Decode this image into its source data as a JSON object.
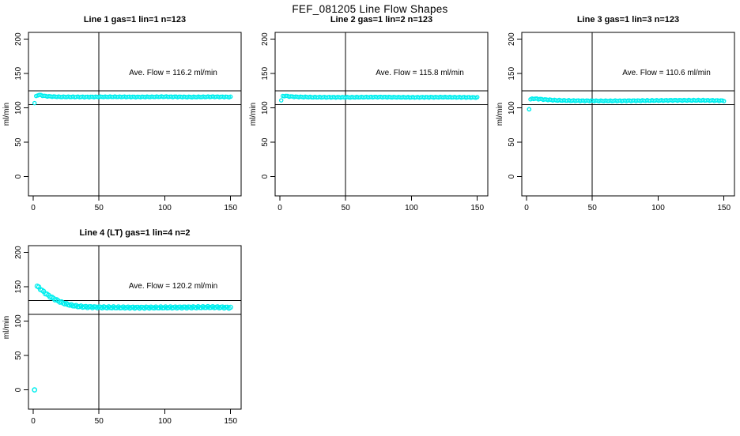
{
  "page_title": "FEF_081205  Line Flow Shapes",
  "colors": {
    "points": "#00EEEE",
    "lines": "#000000"
  },
  "axes": {
    "ylabel": "ml/min",
    "x_ticks": [
      0,
      50,
      100,
      150
    ],
    "y_ticks": [
      0,
      50,
      100,
      150,
      200
    ],
    "x_range": [
      -3.6,
      158
    ],
    "y_range": [
      -28,
      210
    ],
    "vline_x": 50,
    "grid": false,
    "legend": "none"
  },
  "chart_data": [
    {
      "type": "scatter",
      "title": "Line 1 gas=1 lin=1 n=123",
      "annotation": "Ave. Flow =  116.2  ml/min",
      "ave_flow": 116.2,
      "gas": 1,
      "lin": 1,
      "n": 123,
      "hlines": [
        105,
        125
      ],
      "x_start": 1,
      "x_end": 150,
      "n_points": 123,
      "jitter": 0.5,
      "point_radius": 2.1,
      "shape_points": [
        [
          1,
          107
        ],
        [
          2,
          116.5
        ],
        [
          3,
          118.5
        ],
        [
          5,
          119
        ],
        [
          8,
          117.5
        ],
        [
          12,
          116.8
        ],
        [
          20,
          116.2
        ],
        [
          40,
          116
        ],
        [
          60,
          116.3
        ],
        [
          80,
          116
        ],
        [
          100,
          116.4
        ],
        [
          120,
          115.9
        ],
        [
          135,
          116.3
        ],
        [
          150,
          116
        ]
      ],
      "outliers": []
    },
    {
      "type": "scatter",
      "title": "Line 2 gas=1 lin=2 n=123",
      "annotation": "Ave. Flow =  115.8  ml/min",
      "ave_flow": 115.8,
      "gas": 1,
      "lin": 2,
      "n": 123,
      "hlines": [
        105,
        125
      ],
      "x_start": 1,
      "x_end": 150,
      "n_points": 123,
      "jitter": 0.5,
      "point_radius": 2.1,
      "shape_points": [
        [
          1,
          111
        ],
        [
          2,
          117
        ],
        [
          4,
          117.6
        ],
        [
          7,
          116.8
        ],
        [
          12,
          116.2
        ],
        [
          25,
          115.7
        ],
        [
          50,
          115.5
        ],
        [
          75,
          115.9
        ],
        [
          100,
          115.4
        ],
        [
          125,
          115.7
        ],
        [
          150,
          115.3
        ]
      ],
      "outliers": []
    },
    {
      "type": "scatter",
      "title": "Line 3 gas=1 lin=3 n=123",
      "annotation": "Ave. Flow =  110.6  ml/min",
      "ave_flow": 110.6,
      "gas": 1,
      "lin": 3,
      "n": 123,
      "hlines": [
        105,
        125
      ],
      "x_start": 3,
      "x_end": 150,
      "n_points": 122,
      "jitter": 0.6,
      "point_radius": 2.1,
      "shape_points": [
        [
          3,
          112.5
        ],
        [
          5,
          113.6
        ],
        [
          8,
          113.2
        ],
        [
          14,
          112.2
        ],
        [
          22,
          111.2
        ],
        [
          35,
          110.6
        ],
        [
          60,
          110.3
        ],
        [
          85,
          110.6
        ],
        [
          110,
          111.1
        ],
        [
          135,
          111.1
        ],
        [
          150,
          110.6
        ]
      ],
      "outliers": [
        [
          2,
          98
        ]
      ]
    },
    {
      "type": "scatter",
      "title": "Line 4 (LT) gas=1 lin=4 n=2",
      "annotation": "Ave. Flow =  120.2  ml/min",
      "ave_flow": 120.2,
      "gas": 1,
      "lin": 4,
      "n": 2,
      "hlines": [
        110,
        130
      ],
      "x_start": 3,
      "x_end": 150,
      "n_points": 120,
      "jitter": 0.9,
      "point_radius": 2.6,
      "shape_points": [
        [
          3,
          151
        ],
        [
          4,
          149.5
        ],
        [
          6,
          146
        ],
        [
          9,
          141
        ],
        [
          12,
          137
        ],
        [
          15,
          133.5
        ],
        [
          18,
          130.5
        ],
        [
          22,
          127
        ],
        [
          26,
          124.5
        ],
        [
          30,
          122.8
        ],
        [
          35,
          121.5
        ],
        [
          40,
          120.8
        ],
        [
          50,
          120.3
        ],
        [
          65,
          120
        ],
        [
          80,
          119.8
        ],
        [
          100,
          120
        ],
        [
          120,
          120.2
        ],
        [
          135,
          120.5
        ],
        [
          150,
          119.8
        ]
      ],
      "outliers": [
        [
          1,
          0
        ]
      ]
    }
  ]
}
